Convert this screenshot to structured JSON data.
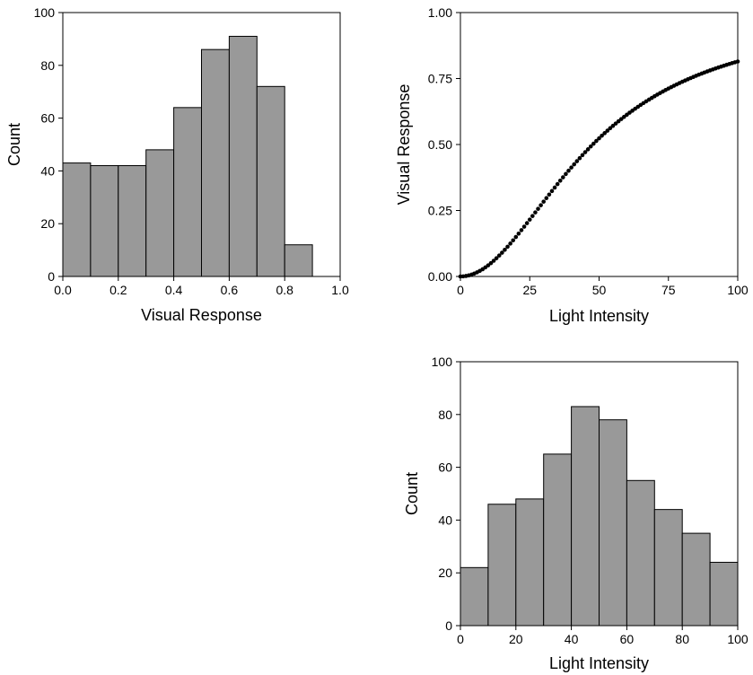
{
  "chart_data": [
    {
      "id": "response-histogram",
      "type": "bar",
      "title": "",
      "xlabel": "Visual Response",
      "ylabel": "Count",
      "xlim": [
        0.0,
        1.0
      ],
      "ylim": [
        0,
        100
      ],
      "bin_edges": [
        0.0,
        0.1,
        0.2,
        0.3,
        0.4,
        0.5,
        0.6,
        0.7,
        0.8,
        0.9
      ],
      "values": [
        43,
        42,
        42,
        48,
        64,
        86,
        91,
        72,
        12
      ],
      "xticks": [
        0.0,
        0.2,
        0.4,
        0.6,
        0.8,
        1.0
      ],
      "xtick_labels": [
        "0.0",
        "0.2",
        "0.4",
        "0.6",
        "0.8",
        "1.0"
      ],
      "yticks": [
        0,
        20,
        40,
        60,
        80,
        100
      ],
      "ytick_labels": [
        "0",
        "20",
        "40",
        "60",
        "80",
        "100"
      ],
      "bar_color": "#999999",
      "edge_color": "#000000",
      "grid": false
    },
    {
      "id": "response-curve",
      "type": "scatter",
      "title": "",
      "xlabel": "Light Intensity",
      "ylabel": "Visual Response",
      "xlim": [
        0,
        100
      ],
      "ylim": [
        0.0,
        1.0
      ],
      "curve": "sigmoid response: y = x^2 / (x^2 + 47.7^2), sampled every 1 unit",
      "x": [
        0,
        5,
        10,
        15,
        20,
        25,
        30,
        35,
        40,
        45,
        50,
        55,
        60,
        65,
        70,
        75,
        80,
        85,
        90,
        95,
        100
      ],
      "y": [
        0.0,
        0.011,
        0.042,
        0.09,
        0.149,
        0.215,
        0.283,
        0.35,
        0.413,
        0.471,
        0.524,
        0.571,
        0.613,
        0.65,
        0.683,
        0.712,
        0.738,
        0.761,
        0.781,
        0.799,
        0.815
      ],
      "xticks": [
        0,
        25,
        50,
        75,
        100
      ],
      "xtick_labels": [
        "0",
        "25",
        "50",
        "75",
        "100"
      ],
      "yticks": [
        0.0,
        0.25,
        0.5,
        0.75,
        1.0
      ],
      "ytick_labels": [
        "0.00",
        "0.25",
        "0.50",
        "0.75",
        "1.00"
      ],
      "marker_color": "#000000",
      "grid": false
    },
    {
      "id": "intensity-histogram",
      "type": "bar",
      "title": "",
      "xlabel": "Light Intensity",
      "ylabel": "Count",
      "xlim": [
        0,
        100
      ],
      "ylim": [
        0,
        100
      ],
      "bin_edges": [
        0,
        10,
        20,
        30,
        40,
        50,
        60,
        70,
        80,
        90,
        100
      ],
      "values": [
        22,
        46,
        48,
        65,
        83,
        78,
        55,
        44,
        35,
        24
      ],
      "xticks": [
        0,
        20,
        40,
        60,
        80,
        100
      ],
      "xtick_labels": [
        "0",
        "20",
        "40",
        "60",
        "80",
        "100"
      ],
      "yticks": [
        0,
        20,
        40,
        60,
        80,
        100
      ],
      "ytick_labels": [
        "0",
        "20",
        "40",
        "60",
        "80",
        "100"
      ],
      "bar_color": "#999999",
      "edge_color": "#000000",
      "grid": false
    }
  ]
}
